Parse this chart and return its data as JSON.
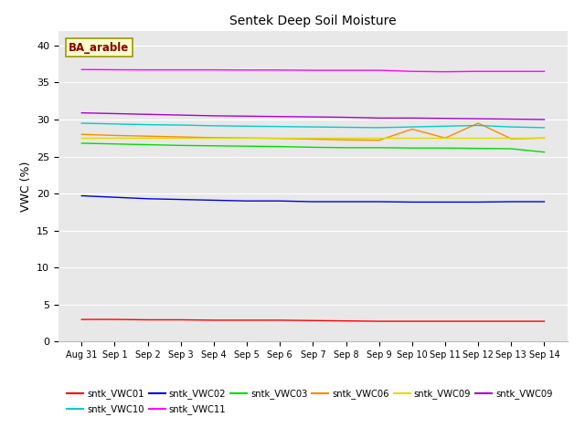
{
  "title": "Sentek Deep Soil Moisture",
  "ylabel": "VWC (%)",
  "ylim": [
    0,
    42
  ],
  "yticks": [
    0,
    5,
    10,
    15,
    20,
    25,
    30,
    35,
    40
  ],
  "background_color": "#e8e8e8",
  "annotation_text": "BA_arable",
  "annotation_color": "#8b0000",
  "annotation_bg": "#ffffcc",
  "annotation_edge": "#999900",
  "xtick_labels": [
    "Aug 31",
    "Sep 1",
    "Sep 2",
    "Sep 3",
    "Sep 4",
    "Sep 5",
    "Sep 6",
    "Sep 7",
    "Sep 8",
    "Sep 9",
    "Sep 10",
    "Sep 11",
    "Sep 12",
    "Sep 13",
    "Sep 14"
  ],
  "series": [
    {
      "label": "sntk_VWC01",
      "color": "#ff0000",
      "values": [
        3.0,
        3.0,
        2.95,
        2.95,
        2.9,
        2.9,
        2.9,
        2.85,
        2.8,
        2.75,
        2.75,
        2.75,
        2.75,
        2.75,
        2.75
      ]
    },
    {
      "label": "sntk_VWC02",
      "color": "#0000dd",
      "values": [
        19.7,
        19.5,
        19.3,
        19.2,
        19.1,
        19.0,
        19.0,
        18.9,
        18.9,
        18.9,
        18.85,
        18.85,
        18.85,
        18.9,
        18.9
      ]
    },
    {
      "label": "sntk_VWC03",
      "color": "#00dd00",
      "values": [
        26.8,
        26.7,
        26.6,
        26.5,
        26.45,
        26.4,
        26.35,
        26.25,
        26.2,
        26.2,
        26.15,
        26.15,
        26.1,
        26.05,
        25.6
      ]
    },
    {
      "label": "sntk_VWC06",
      "color": "#ff8800",
      "values": [
        28.0,
        27.85,
        27.75,
        27.65,
        27.55,
        27.5,
        27.45,
        27.35,
        27.25,
        27.2,
        28.7,
        27.5,
        29.5,
        27.4,
        27.5
      ]
    },
    {
      "label": "sntk_VWC09",
      "color": "#dddd00",
      "values": [
        27.5,
        27.5,
        27.5,
        27.5,
        27.5,
        27.5,
        27.5,
        27.5,
        27.5,
        27.5,
        27.5,
        27.5,
        27.5,
        27.5,
        27.5
      ]
    },
    {
      "label": "sntk_VWC09",
      "color": "#aa00cc",
      "values": [
        30.9,
        30.8,
        30.7,
        30.6,
        30.5,
        30.45,
        30.4,
        30.35,
        30.3,
        30.2,
        30.2,
        30.15,
        30.1,
        30.05,
        30.0
      ]
    },
    {
      "label": "sntk_VWC10",
      "color": "#00cccc",
      "values": [
        29.5,
        29.4,
        29.3,
        29.25,
        29.15,
        29.1,
        29.05,
        29.0,
        28.95,
        28.9,
        29.0,
        29.1,
        29.2,
        29.0,
        28.9
      ]
    },
    {
      "label": "sntk_VWC11",
      "color": "#ff00ff",
      "values": [
        36.75,
        36.72,
        36.7,
        36.7,
        36.7,
        36.68,
        36.68,
        36.65,
        36.65,
        36.65,
        36.5,
        36.45,
        36.5,
        36.5,
        36.5
      ]
    }
  ],
  "n_points": 15,
  "legend_rows": [
    [
      {
        "label": "sntk_VWC01",
        "color": "#ff0000"
      },
      {
        "label": "sntk_VWC02",
        "color": "#0000dd"
      },
      {
        "label": "sntk_VWC03",
        "color": "#00dd00"
      },
      {
        "label": "sntk_VWC06",
        "color": "#ff8800"
      },
      {
        "label": "sntk_VWC09",
        "color": "#dddd00"
      },
      {
        "label": "sntk_VWC09",
        "color": "#aa00cc"
      }
    ],
    [
      {
        "label": "sntk_VWC10",
        "color": "#00cccc"
      },
      {
        "label": "sntk_VWC11",
        "color": "#ff00ff"
      }
    ]
  ]
}
